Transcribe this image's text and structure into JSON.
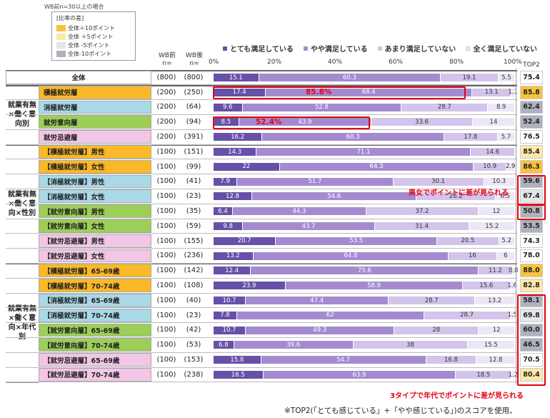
{
  "header": {
    "note": "WB前n=30以上の場合",
    "diff_legend": {
      "title": "[比率の差]",
      "items": [
        {
          "label": "全体＋10ポイント",
          "color": "#f7c33e"
        },
        {
          "label": "全体 ＋5ポイント",
          "color": "#fde8a8"
        },
        {
          "label": "全体 -5ポイント",
          "color": "#e4e6ea"
        },
        {
          "label": "全体-10ポイント",
          "color": "#aeb2bd"
        }
      ]
    },
    "col_wb_before": "WB前",
    "col_wb_after": "WB後",
    "col_n": "n=",
    "col_top2": "TOP2",
    "series_legend": [
      "とても満足している",
      "やや満足している",
      "あまり満足していない",
      "全く満足していない"
    ],
    "axis_ticks": [
      "0%",
      "20%",
      "40%",
      "60%",
      "80%",
      "100%"
    ]
  },
  "groups": [
    {
      "label": "",
      "rows": [
        0
      ]
    },
    {
      "label": "就業有無×働く意向別",
      "rows": [
        1,
        2,
        3,
        4
      ]
    },
    {
      "label": "就業有無×働く意向×性別",
      "rows": [
        5,
        6,
        7,
        8,
        9,
        10,
        11,
        12
      ]
    },
    {
      "label": "就業有無×働く意向×年代別",
      "rows": [
        13,
        14,
        15,
        16,
        17,
        18,
        19,
        20
      ]
    }
  ],
  "chart_data": {
    "type": "bar",
    "orientation": "horizontal-stacked-100",
    "title": "",
    "series": [
      {
        "name": "とても満足している",
        "color": "#6650a8"
      },
      {
        "name": "やや満足している",
        "color": "#a48bd0"
      },
      {
        "name": "あまり満足していない",
        "color": "#d2c4ea"
      },
      {
        "name": "全く満足していない",
        "color": "#ece6f6"
      }
    ],
    "xlim": [
      0,
      100
    ],
    "rows": [
      {
        "label": "全体",
        "n_before": "(800)",
        "n_after": "(800)",
        "values": [
          15.1,
          60.3,
          19.1,
          5.5
        ],
        "top2": "75.4",
        "cat": "all",
        "top2_flag": "none"
      },
      {
        "label": "積極就労層",
        "n_before": "(200)",
        "n_after": "(250)",
        "values": [
          17.4,
          68.4,
          13.1,
          1.1
        ],
        "top2": "85.8",
        "cat": "active",
        "top2_flag": "plus10"
      },
      {
        "label": "消極就労層",
        "n_before": "(200)",
        "n_after": "(64)",
        "values": [
          9.6,
          52.8,
          28.7,
          8.9
        ],
        "top2": "62.4",
        "cat": "passive",
        "top2_flag": "minus10"
      },
      {
        "label": "就労意向層",
        "n_before": "(200)",
        "n_after": "(94)",
        "values": [
          8.5,
          43.9,
          33.6,
          14.0
        ],
        "top2": "52.4",
        "cat": "intent",
        "top2_flag": "minus10"
      },
      {
        "label": "就労忌避層",
        "n_before": "(200)",
        "n_after": "(391)",
        "values": [
          16.2,
          60.3,
          17.8,
          5.7
        ],
        "top2": "76.5",
        "cat": "avoid",
        "top2_flag": "none"
      },
      {
        "label": "【積極就労層】男性",
        "n_before": "(100)",
        "n_after": "(151)",
        "values": [
          14.3,
          71.1,
          14.6,
          0
        ],
        "top2": "85.4",
        "cat": "active",
        "top2_flag": "plus5"
      },
      {
        "label": "【積極就労層】女性",
        "n_before": "(100)",
        "n_after": "(99)",
        "values": [
          22.0,
          64.3,
          10.9,
          2.9
        ],
        "top2": "86.3",
        "cat": "active",
        "top2_flag": "plus10"
      },
      {
        "label": "【消極就労層】男性",
        "n_before": "(100)",
        "n_after": "(41)",
        "values": [
          7.9,
          51.7,
          30.1,
          10.3
        ],
        "top2": "59.6",
        "cat": "passive",
        "top2_flag": "minus10"
      },
      {
        "label": "【消極就労層】女性",
        "n_before": "(100)",
        "n_after": "(23)",
        "values": [
          12.8,
          54.6,
          26.2,
          6.5
        ],
        "top2": "67.4",
        "cat": "passive",
        "top2_flag": "minus5"
      },
      {
        "label": "【就労意向層】男性",
        "n_before": "(100)",
        "n_after": "(35)",
        "values": [
          6.4,
          44.3,
          37.2,
          12.0
        ],
        "top2": "50.8",
        "cat": "intent",
        "top2_flag": "minus10"
      },
      {
        "label": "【就労意向層】女性",
        "n_before": "(100)",
        "n_after": "(59)",
        "values": [
          9.8,
          43.7,
          31.4,
          15.2
        ],
        "top2": "53.5",
        "cat": "intent",
        "top2_flag": "minus10"
      },
      {
        "label": "【就労忌避層】男性",
        "n_before": "(100)",
        "n_after": "(155)",
        "values": [
          20.7,
          53.5,
          20.5,
          5.2
        ],
        "top2": "74.3",
        "cat": "avoid",
        "top2_flag": "none"
      },
      {
        "label": "【就労忌避層】女性",
        "n_before": "(100)",
        "n_after": "(236)",
        "values": [
          13.2,
          64.8,
          16.0,
          6.0
        ],
        "top2": "78.0",
        "cat": "avoid",
        "top2_flag": "none"
      },
      {
        "label": "【積極就労層】65-69歳",
        "n_before": "(100)",
        "n_after": "(142)",
        "values": [
          12.4,
          75.6,
          11.2,
          0.8
        ],
        "top2": "88.0",
        "cat": "active",
        "top2_flag": "plus10"
      },
      {
        "label": "【積極就労層】70-74歳",
        "n_before": "(100)",
        "n_after": "(108)",
        "values": [
          23.9,
          58.9,
          15.6,
          1.6
        ],
        "top2": "82.8",
        "cat": "active",
        "top2_flag": "plus5"
      },
      {
        "label": "【消極就労層】65-69歳",
        "n_before": "(100)",
        "n_after": "(40)",
        "values": [
          10.7,
          47.4,
          28.7,
          13.2
        ],
        "top2": "58.1",
        "cat": "passive",
        "top2_flag": "minus10"
      },
      {
        "label": "【消極就労層】70-74歳",
        "n_before": "(100)",
        "n_after": "(23)",
        "values": [
          7.8,
          62.0,
          28.7,
          1.5
        ],
        "top2": "69.8",
        "cat": "passive",
        "top2_flag": "minus5"
      },
      {
        "label": "【就労意向層】65-69歳",
        "n_before": "(100)",
        "n_after": "(42)",
        "values": [
          10.7,
          49.3,
          28.0,
          12.0
        ],
        "top2": "60.0",
        "cat": "intent",
        "top2_flag": "minus10"
      },
      {
        "label": "【就労意向層】70-74歳",
        "n_before": "(100)",
        "n_after": "(53)",
        "values": [
          6.8,
          39.6,
          38.0,
          15.5
        ],
        "top2": "46.5",
        "cat": "intent",
        "top2_flag": "minus10"
      },
      {
        "label": "【就労忌避層】65-69歳",
        "n_before": "(100)",
        "n_after": "(153)",
        "values": [
          15.8,
          54.7,
          16.8,
          12.8
        ],
        "top2": "70.5",
        "cat": "avoid",
        "top2_flag": "none"
      },
      {
        "label": "【就労忌避層】70-74歳",
        "n_before": "(100)",
        "n_after": "(238)",
        "values": [
          16.5,
          63.9,
          18.5,
          1.2
        ],
        "top2": "80.4",
        "cat": "avoid",
        "top2_flag": "plus5"
      }
    ]
  },
  "category_colors": {
    "all": "#ffffff",
    "active": "#fbb827",
    "passive": "#a9d8e8",
    "intent": "#9ccf57",
    "avoid": "#f2c6e6"
  },
  "top2_colors": {
    "plus10": "#f7c33e",
    "plus5": "#fde8a8",
    "minus5": "#e4e6ea",
    "minus10": "#aeb2bd",
    "none": "#ffffff"
  },
  "annotations": {
    "hl_active": "85.8%",
    "hl_intent": "52.4%",
    "gender_note": "男女でポイントに差が見られる",
    "age_note": "3タイプで年代でポイントに差が見られる",
    "footnote": "※TOP2(「とても感じている」+「やや感じている」)のスコアを使用。"
  }
}
